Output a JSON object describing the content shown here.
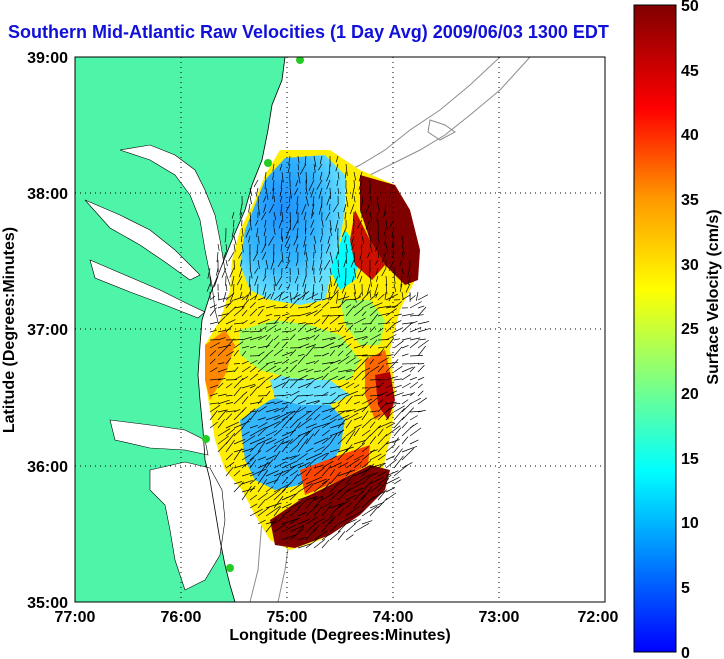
{
  "title": "Southern Mid-Atlantic Raw Velocities (1 Day Avg) 2009/06/03 1300 EDT",
  "map": {
    "x_label": "Longitude (Degrees:Minutes)",
    "y_label": "Latitude (Degrees:Minutes)",
    "x_ticks": [
      "77:00",
      "76:00",
      "75:00",
      "74:00",
      "73:00",
      "72:00"
    ],
    "y_ticks": [
      "39:00",
      "38:00",
      "37:00",
      "36:00",
      "35:00"
    ],
    "lon_range": [
      -77,
      -72
    ],
    "lat_range": [
      35,
      39
    ],
    "grid": true,
    "land_color": "#4ef5a8",
    "water_color": "#ffffff",
    "contour_color": "#8c8c8c",
    "station_marker_color": "#22cc22"
  },
  "colorbar": {
    "label": "Surface Velocity (cm/s)",
    "ticks": [
      "50",
      "45",
      "40",
      "35",
      "30",
      "25",
      "20",
      "15",
      "10",
      "5",
      "0"
    ],
    "range": [
      0,
      50
    ],
    "colormap": [
      "#0000ff",
      "#00aaff",
      "#00ffff",
      "#7fff7f",
      "#ffff00",
      "#ff9900",
      "#ff0000",
      "#800000"
    ]
  },
  "velocity_field": {
    "vector_color": "#000000",
    "units": "cm/s"
  }
}
